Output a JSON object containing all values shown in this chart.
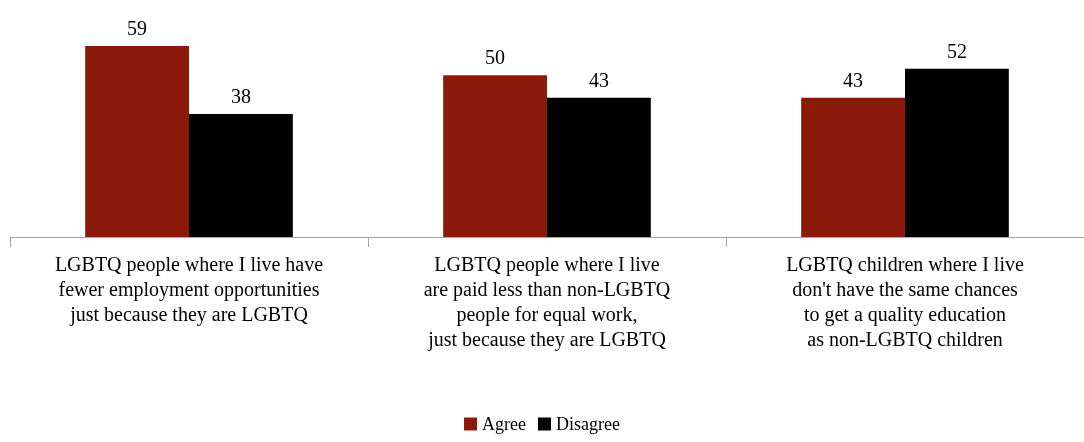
{
  "chart_data": {
    "type": "bar",
    "categories": [
      "LGBTQ people where I live have\nfewer employment opportunities\njust because they are LGBTQ",
      "LGBTQ people where I live\nare paid less than non-LGBTQ\npeople for equal work,\njust because they are LGBTQ",
      "LGBTQ children where I live\ndon't have the same chances\nto get a quality education\nas non-LGBTQ children"
    ],
    "series": [
      {
        "name": "Agree",
        "color": "#8b1a0a",
        "values": [
          59,
          50,
          43
        ]
      },
      {
        "name": "Disagree",
        "color": "#000000",
        "values": [
          38,
          43,
          52
        ]
      }
    ],
    "data_labels": true,
    "legend": "bottom",
    "grid": false
  }
}
